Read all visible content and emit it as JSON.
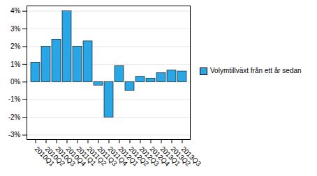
{
  "chart_data": {
    "type": "bar",
    "categories": [
      "2010Q1",
      "2010Q2",
      "2010Q3",
      "2010Q4",
      "2011Q1",
      "2011Q2",
      "2011Q3",
      "2011Q4",
      "2012Q1",
      "2012Q2",
      "2012Q3",
      "2012Q4",
      "2013Q1",
      "2013Q2",
      "2013Q3"
    ],
    "series": [
      {
        "name": "Volymtillväxt från ett år sedan",
        "color": "#29a6e6",
        "values": [
          1.1,
          2.0,
          2.4,
          4.0,
          2.0,
          2.3,
          -0.2,
          -2.0,
          0.9,
          -0.5,
          0.3,
          0.2,
          0.5,
          0.65,
          0.6
        ]
      }
    ],
    "ylim": [
      -3.25,
      4.3
    ],
    "yticks": [
      {
        "value": -3,
        "label": "-3%"
      },
      {
        "value": -2,
        "label": "-2%"
      },
      {
        "value": -1,
        "label": "-1%"
      },
      {
        "value": 0,
        "label": "0%"
      },
      {
        "value": 1,
        "label": "1%"
      },
      {
        "value": 2,
        "label": "2%"
      },
      {
        "value": 3,
        "label": "3%"
      },
      {
        "value": 4,
        "label": "4%"
      }
    ],
    "grid": true,
    "legend": "right"
  }
}
